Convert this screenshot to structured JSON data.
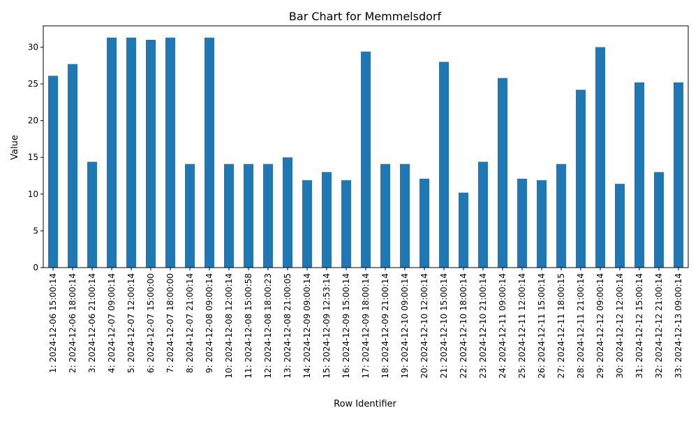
{
  "chart_data": {
    "type": "bar",
    "title": "Bar Chart for Memmelsdorf",
    "xlabel": "Row Identifier",
    "ylabel": "Value",
    "ylim": [
      0,
      32.9
    ],
    "yticks": [
      0,
      5,
      10,
      15,
      20,
      25,
      30
    ],
    "grid": false,
    "legend": "none",
    "bar_color": "#1f77b4",
    "categories": [
      "1: 2024-12-06 15:00:14",
      "2: 2024-12-06 18:00:14",
      "3: 2024-12-06 21:00:14",
      "4: 2024-12-07 09:00:14",
      "5: 2024-12-07 12:00:14",
      "6: 2024-12-07 15:00:00",
      "7: 2024-12-07 18:00:00",
      "8: 2024-12-07 21:00:14",
      "9: 2024-12-08 09:00:14",
      "10: 2024-12-08 12:00:14",
      "11: 2024-12-08 15:00:58",
      "12: 2024-12-08 18:00:23",
      "13: 2024-12-08 21:00:05",
      "14: 2024-12-09 09:00:14",
      "15: 2024-12-09 12:53:14",
      "16: 2024-12-09 15:00:14",
      "17: 2024-12-09 18:00:14",
      "18: 2024-12-09 21:00:14",
      "19: 2024-12-10 09:00:14",
      "20: 2024-12-10 12:00:14",
      "21: 2024-12-10 15:00:14",
      "22: 2024-12-10 18:00:14",
      "23: 2024-12-10 21:00:14",
      "24: 2024-12-11 09:00:14",
      "25: 2024-12-11 12:00:14",
      "26: 2024-12-11 15:00:14",
      "27: 2024-12-11 18:00:15",
      "28: 2024-12-11 21:00:14",
      "29: 2024-12-12 09:00:14",
      "30: 2024-12-12 12:00:14",
      "31: 2024-12-12 15:00:14",
      "32: 2024-12-12 21:00:14",
      "33: 2024-12-13 09:00:14"
    ],
    "values": [
      26.1,
      27.7,
      14.4,
      31.3,
      31.3,
      31.0,
      31.3,
      14.1,
      31.3,
      14.1,
      14.1,
      14.1,
      15.0,
      11.9,
      13.0,
      11.9,
      29.4,
      14.1,
      14.1,
      12.1,
      28.0,
      10.2,
      14.4,
      25.8,
      12.1,
      11.9,
      14.1,
      24.2,
      30.0,
      11.4,
      25.2,
      13.0,
      25.2
    ]
  }
}
